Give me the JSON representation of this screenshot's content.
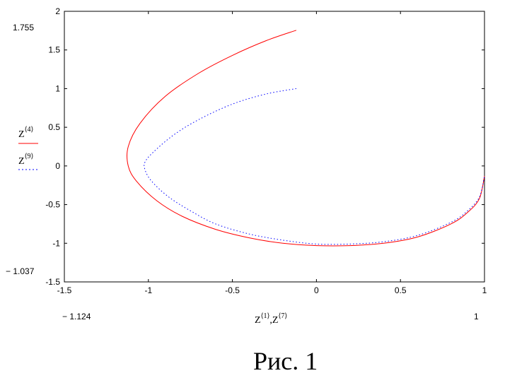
{
  "chart_data": {
    "type": "line",
    "xlim": [
      -1.5,
      1
    ],
    "ylim": [
      -1.5,
      2
    ],
    "x_ticks": [
      "-1.5",
      "-1",
      "-0.5",
      "0",
      "0.5",
      "1"
    ],
    "y_ticks": [
      "2",
      "1.5",
      "1",
      "0.5",
      "0",
      "-0.5",
      "-1",
      "-1.5"
    ],
    "grid": false,
    "legend_position": "left",
    "xlabel": {
      "base1": "Z",
      "sup1": "⟨1⟩",
      "sep": ",",
      "base2": "Z",
      "sup2": "⟨7⟩"
    },
    "legend": [
      {
        "base": "Z",
        "sup": "⟨4⟩",
        "style": "solid",
        "color": "#ff0000"
      },
      {
        "base": "Z",
        "sup": "⟨9⟩",
        "style": "dotted",
        "color": "#0000ff"
      }
    ],
    "range_labels": {
      "y_max": "1.755",
      "y_min": "− 1.037",
      "x_min": "− 1.124",
      "x_max": "1"
    },
    "series": [
      {
        "color": "#ff0000",
        "style": "solid",
        "x": [
          -0.12,
          -0.3,
          -0.5,
          -0.7,
          -0.9,
          -1.05,
          -1.12,
          -1.12,
          -1.07,
          -0.95,
          -0.8,
          -0.6,
          -0.4,
          -0.2,
          0.0,
          0.2,
          0.4,
          0.6,
          0.8,
          0.9,
          0.97,
          1.0
        ],
        "y": [
          1.755,
          1.62,
          1.43,
          1.2,
          0.9,
          0.55,
          0.25,
          0.0,
          -0.2,
          -0.45,
          -0.65,
          -0.82,
          -0.93,
          -1.0,
          -1.03,
          -1.03,
          -1.0,
          -0.92,
          -0.75,
          -0.6,
          -0.42,
          -0.13
        ]
      },
      {
        "color": "#0000ff",
        "style": "dotted",
        "x": [
          -0.12,
          -0.3,
          -0.5,
          -0.7,
          -0.85,
          -0.97,
          -1.02,
          -1.02,
          -0.98,
          -0.88,
          -0.75,
          -0.6,
          -0.4,
          -0.2,
          0.0,
          0.2,
          0.4,
          0.6,
          0.8,
          0.9,
          0.97,
          1.0
        ],
        "y": [
          1.0,
          0.93,
          0.8,
          0.6,
          0.4,
          0.18,
          0.05,
          -0.05,
          -0.2,
          -0.4,
          -0.58,
          -0.75,
          -0.88,
          -0.96,
          -1.01,
          -1.01,
          -0.98,
          -0.9,
          -0.73,
          -0.58,
          -0.4,
          -0.13
        ]
      }
    ]
  },
  "caption": "Рис. 1"
}
